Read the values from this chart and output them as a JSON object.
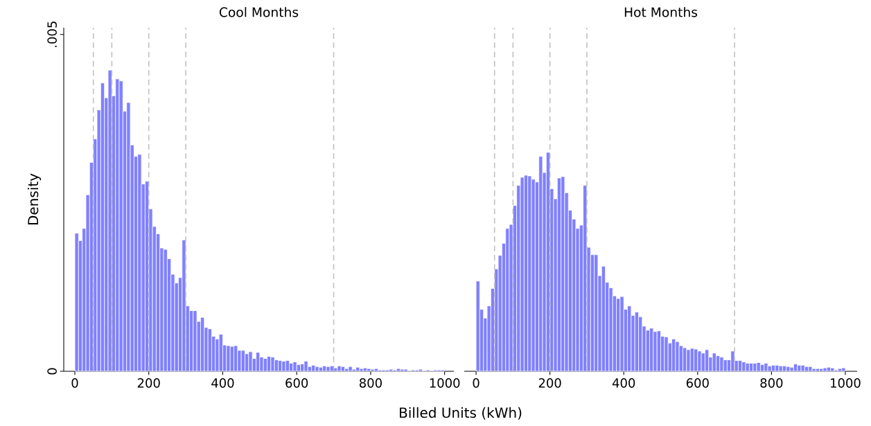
{
  "chart_data": [
    {
      "type": "histogram",
      "title": "Cool Months",
      "xlabel": "Billed Units (kWh)",
      "ylabel": "Density",
      "color": "#8080ff",
      "bins": [
        0,
        10,
        20,
        30,
        40,
        50,
        60,
        70,
        80,
        90,
        100,
        110,
        120,
        130,
        140,
        150,
        160,
        170,
        180,
        190,
        200,
        210,
        220,
        230,
        240,
        250,
        260,
        270,
        280,
        290,
        300,
        310,
        320,
        330,
        340,
        350,
        360,
        370,
        380,
        390,
        400,
        410,
        420,
        430,
        440,
        450,
        460,
        470,
        480,
        490,
        500,
        510,
        520,
        530,
        540,
        550,
        560,
        570,
        580,
        590,
        600,
        610,
        620,
        630,
        640,
        650,
        660,
        670,
        680,
        690,
        700,
        710,
        720,
        730,
        740,
        750,
        760,
        770,
        780,
        790,
        800,
        810,
        820,
        830,
        840,
        850,
        860,
        870,
        880,
        890,
        900,
        910,
        920,
        930,
        940,
        950,
        960,
        970,
        980,
        990,
        1000
      ],
      "values": [
        0.00205,
        0.00194,
        0.00212,
        0.00262,
        0.0031,
        0.00345,
        0.00388,
        0.00428,
        0.00406,
        0.00447,
        0.00409,
        0.00434,
        0.00431,
        0.00386,
        0.00399,
        0.00336,
        0.00319,
        0.00322,
        0.00278,
        0.00282,
        0.00241,
        0.00215,
        0.00204,
        0.00183,
        0.00181,
        0.00167,
        0.00144,
        0.00131,
        0.00139,
        0.00195,
        0.00097,
        0.0009,
        0.0009,
        0.00074,
        0.0008,
        0.00065,
        0.00063,
        0.00052,
        0.00048,
        0.00055,
        0.00039,
        0.00038,
        0.00037,
        0.00038,
        0.00031,
        0.00031,
        0.00026,
        0.00029,
        0.00019,
        0.00028,
        0.00021,
        0.00019,
        0.00022,
        0.00021,
        0.00017,
        0.00016,
        0.00015,
        0.00016,
        0.00012,
        0.00014,
        0.0001,
        0.00011,
        0.00015,
        7e-05,
        9e-05,
        7e-05,
        6e-05,
        8e-05,
        7e-05,
        8e-05,
        5e-05,
        8e-05,
        7e-05,
        4e-05,
        7e-05,
        3e-05,
        6e-05,
        4e-05,
        5e-05,
        4e-05,
        3e-05,
        4e-05,
        2e-05,
        2e-05,
        2e-05,
        3e-05,
        2e-05,
        4e-05,
        3e-05,
        3e-05,
        1e-05,
        2e-05,
        2e-05,
        3e-05,
        1e-05,
        2e-05,
        1e-05,
        2e-05,
        2e-05,
        2e-05
      ],
      "xlim": [
        -30,
        1025
      ],
      "ylim": [
        0,
        0.0051
      ],
      "xticks": [
        0,
        200,
        400,
        600,
        800,
        1000
      ],
      "yticks": [
        {
          "value": 0,
          "label": "0"
        },
        {
          "value": 0.005,
          "label": ".005"
        }
      ],
      "ref_lines": [
        {
          "axis": "x",
          "value": 50,
          "color": "#c0c0c0",
          "line_style": "dashed"
        },
        {
          "axis": "x",
          "value": 100,
          "color": "#c0c0c0",
          "line_style": "dashed"
        },
        {
          "axis": "x",
          "value": 200,
          "color": "#c0c0c0",
          "line_style": "dashed"
        },
        {
          "axis": "x",
          "value": 300,
          "color": "#c0c0c0",
          "line_style": "dashed"
        },
        {
          "axis": "x",
          "value": 700,
          "color": "#c0c0c0",
          "line_style": "dashed"
        }
      ]
    },
    {
      "type": "histogram",
      "title": "Hot Months",
      "color": "#8080ff",
      "bins": [
        0,
        10,
        20,
        30,
        40,
        50,
        60,
        70,
        80,
        90,
        100,
        110,
        120,
        130,
        140,
        150,
        160,
        170,
        180,
        190,
        200,
        210,
        220,
        230,
        240,
        250,
        260,
        270,
        280,
        290,
        300,
        310,
        320,
        330,
        340,
        350,
        360,
        370,
        380,
        390,
        400,
        410,
        420,
        430,
        440,
        450,
        460,
        470,
        480,
        490,
        500,
        510,
        520,
        530,
        540,
        550,
        560,
        570,
        580,
        590,
        600,
        610,
        620,
        630,
        640,
        650,
        660,
        670,
        680,
        690,
        700,
        710,
        720,
        730,
        740,
        750,
        760,
        770,
        780,
        790,
        800,
        810,
        820,
        830,
        840,
        850,
        860,
        870,
        880,
        890,
        900,
        910,
        920,
        930,
        940,
        950,
        960,
        970,
        980,
        990,
        1000
      ],
      "values": [
        0.00134,
        0.00092,
        0.00079,
        0.00097,
        0.00123,
        0.00152,
        0.00172,
        0.0019,
        0.00212,
        0.00218,
        0.00246,
        0.00276,
        0.00288,
        0.00291,
        0.0029,
        0.00285,
        0.00281,
        0.00319,
        0.00295,
        0.00325,
        0.00271,
        0.00256,
        0.00287,
        0.00289,
        0.00265,
        0.00239,
        0.00226,
        0.00212,
        0.00217,
        0.00276,
        0.00184,
        0.00173,
        0.00173,
        0.00142,
        0.00156,
        0.00132,
        0.00124,
        0.00112,
        0.00108,
        0.00111,
        0.00092,
        0.00097,
        0.00083,
        0.00088,
        0.00081,
        0.00067,
        0.00061,
        0.00064,
        0.00059,
        0.0006,
        0.00052,
        0.00051,
        0.00042,
        0.00048,
        0.00044,
        0.00038,
        0.00035,
        0.00032,
        0.00034,
        0.00033,
        0.0003,
        0.00027,
        0.00032,
        0.00021,
        0.00027,
        0.00023,
        0.00021,
        0.00017,
        0.00017,
        0.0003,
        0.00016,
        0.00016,
        0.00014,
        0.00012,
        0.00012,
        0.00012,
        0.00013,
        0.0001,
        0.00012,
        8e-05,
        9e-05,
        9e-05,
        8e-05,
        8e-05,
        7e-05,
        6e-05,
        0.00011,
        9e-05,
        9e-05,
        7e-05,
        7e-05,
        4e-05,
        4e-05,
        4e-05,
        5e-05,
        6e-05,
        5e-05,
        2e-05,
        4e-05,
        5e-05
      ],
      "xlim": [
        -32,
        1032
      ],
      "ylim": [
        0,
        0.0051
      ],
      "xticks": [
        0,
        200,
        400,
        600,
        800,
        1000
      ],
      "tick_labels": "x",
      "ref_lines": [
        {
          "axis": "x",
          "value": 50,
          "color": "#c0c0c0",
          "line_style": "dashed"
        },
        {
          "axis": "x",
          "value": 100,
          "color": "#c0c0c0",
          "line_style": "dashed"
        },
        {
          "axis": "x",
          "value": 200,
          "color": "#c0c0c0",
          "line_style": "dashed"
        },
        {
          "axis": "x",
          "value": 300,
          "color": "#c0c0c0",
          "line_style": "dashed"
        },
        {
          "axis": "x",
          "value": 700,
          "color": "#c0c0c0",
          "line_style": "dashed"
        }
      ]
    }
  ]
}
